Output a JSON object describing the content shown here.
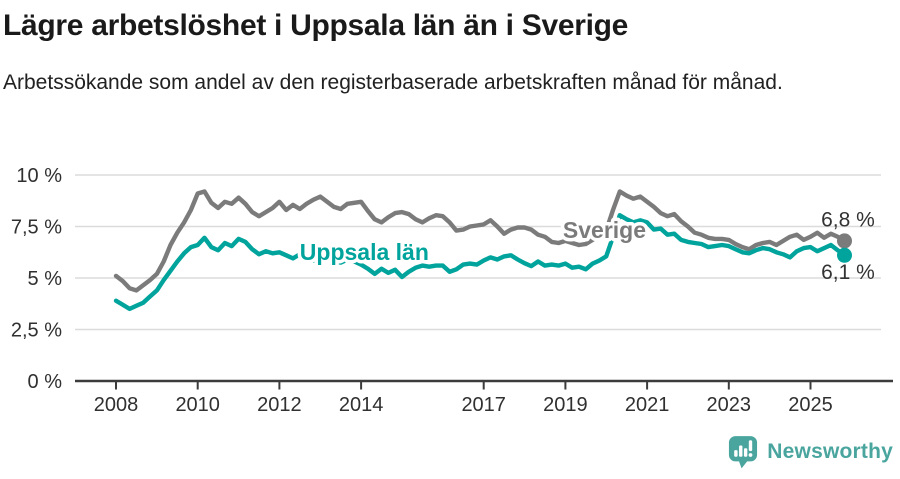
{
  "header": {
    "title": "Lägre arbetslöshet i Uppsala län än i Sverige",
    "subtitle": "Arbetssökande som andel av den registerbaserade arbetskraften månad för månad."
  },
  "footer": {
    "brand": "Newsworthy"
  },
  "colors": {
    "sverige_line": "#7b7b7b",
    "uppsala_line": "#00a49c",
    "grid": "#dbdbdb",
    "axis": "#3c3c3c",
    "tick_label": "#303030",
    "value_label": "#333333",
    "brand_teal": "#4aa59f"
  },
  "chart_data": {
    "type": "line",
    "title": "Lägre arbetslöshet i Uppsala län än i Sverige",
    "subtitle": "Arbetssökande som andel av den registerbaserade arbetskraften månad för månad.",
    "unit": "%",
    "grid": true,
    "legend": "inline-labels",
    "x_start": 2008.0,
    "x_step_years": 0.16667,
    "x_end": 2025.83,
    "ylim": [
      0,
      10.3
    ],
    "x_ticks": [
      2008,
      2010,
      2012,
      2014,
      2017,
      2019,
      2021,
      2023,
      2025
    ],
    "y_ticks": [
      {
        "value": 10,
        "label": "10 %"
      },
      {
        "value": 7.5,
        "label": "7,5 %"
      },
      {
        "value": 5,
        "label": "5 %"
      },
      {
        "value": 2.5,
        "label": "2,5 %"
      },
      {
        "value": 0,
        "label": "0 %"
      }
    ],
    "series": [
      {
        "name": "Sverige",
        "color": "#7b7b7b",
        "name_label": {
          "year": 2018.94,
          "value": 7.33
        },
        "end_label": {
          "text": "6,8 %",
          "year": 2025.26,
          "value": 7.85
        },
        "last_value": 6.8,
        "values": [
          5.1,
          4.85,
          4.5,
          4.4,
          4.65,
          4.9,
          5.2,
          5.8,
          6.6,
          7.2,
          7.7,
          8.3,
          9.1,
          9.2,
          8.65,
          8.4,
          8.7,
          8.6,
          8.9,
          8.6,
          8.2,
          8.0,
          8.2,
          8.4,
          8.7,
          8.3,
          8.55,
          8.35,
          8.6,
          8.8,
          8.95,
          8.7,
          8.45,
          8.35,
          8.6,
          8.65,
          8.7,
          8.25,
          7.85,
          7.7,
          7.95,
          8.15,
          8.2,
          8.1,
          7.85,
          7.7,
          7.9,
          8.05,
          8.0,
          7.7,
          7.3,
          7.35,
          7.5,
          7.55,
          7.6,
          7.8,
          7.5,
          7.15,
          7.35,
          7.45,
          7.45,
          7.35,
          7.1,
          7.0,
          6.75,
          6.7,
          6.8,
          6.7,
          6.6,
          6.65,
          6.85,
          7.05,
          7.3,
          8.3,
          9.2,
          9.0,
          8.85,
          8.95,
          8.7,
          8.45,
          8.15,
          8.0,
          8.1,
          7.75,
          7.5,
          7.2,
          7.1,
          6.95,
          6.9,
          6.9,
          6.85,
          6.65,
          6.5,
          6.4,
          6.6,
          6.7,
          6.75,
          6.6,
          6.8,
          7.0,
          7.1,
          6.85,
          7.0,
          7.2,
          6.95,
          7.15,
          7.0,
          6.8
        ]
      },
      {
        "name": "Uppsala län",
        "color": "#00a49c",
        "name_label": {
          "year": 2012.5,
          "value": 6.26
        },
        "end_label": {
          "text": "6,1 %",
          "year": 2025.26,
          "value": 5.3
        },
        "last_value": 6.1,
        "values": [
          3.9,
          3.7,
          3.5,
          3.65,
          3.8,
          4.1,
          4.4,
          4.9,
          5.35,
          5.8,
          6.2,
          6.5,
          6.6,
          6.95,
          6.5,
          6.35,
          6.7,
          6.55,
          6.9,
          6.75,
          6.4,
          6.15,
          6.3,
          6.2,
          6.25,
          6.1,
          5.95,
          6.15,
          5.95,
          5.85,
          6.1,
          6.0,
          5.8,
          5.75,
          5.9,
          5.8,
          5.65,
          5.45,
          5.2,
          5.45,
          5.25,
          5.4,
          5.05,
          5.3,
          5.5,
          5.6,
          5.55,
          5.6,
          5.6,
          5.3,
          5.42,
          5.65,
          5.7,
          5.65,
          5.85,
          6.0,
          5.9,
          6.05,
          6.1,
          5.9,
          5.72,
          5.58,
          5.8,
          5.6,
          5.65,
          5.6,
          5.7,
          5.5,
          5.55,
          5.42,
          5.7,
          5.85,
          6.05,
          7.0,
          8.05,
          7.85,
          7.7,
          7.8,
          7.7,
          7.35,
          7.4,
          7.1,
          7.15,
          6.85,
          6.75,
          6.7,
          6.65,
          6.5,
          6.55,
          6.6,
          6.55,
          6.4,
          6.25,
          6.2,
          6.35,
          6.45,
          6.4,
          6.25,
          6.15,
          6.0,
          6.3,
          6.45,
          6.5,
          6.3,
          6.45,
          6.6,
          6.35,
          6.1
        ]
      }
    ]
  }
}
